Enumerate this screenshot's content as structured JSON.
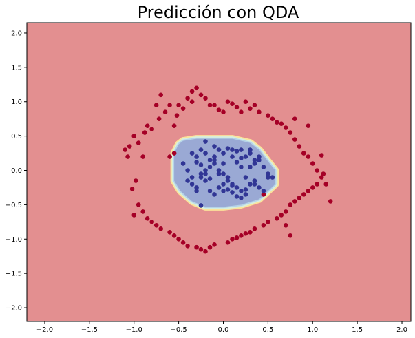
{
  "chart_data": {
    "type": "scatter",
    "title": "Predicción con QDA",
    "xlabel": "",
    "ylabel": "",
    "xlim": [
      -2.2,
      2.1
    ],
    "ylim": [
      -2.2,
      2.15
    ],
    "x_ticks": [
      -2.0,
      -1.5,
      -1.0,
      -0.5,
      0.0,
      0.5,
      1.0,
      1.5,
      2.0
    ],
    "x_tick_labels": [
      "−2.0",
      "−1.5",
      "−1.0",
      "−0.5",
      "0.0",
      "0.5",
      "1.0",
      "1.5",
      "2.0"
    ],
    "y_ticks": [
      2.0,
      1.5,
      1.0,
      0.5,
      0.0,
      -0.5,
      -1.0,
      -1.5,
      -2.0
    ],
    "y_tick_labels": [
      "2.0",
      "1.5",
      "1.0",
      "0.5",
      "0.0",
      "−0.5",
      "−1.0",
      "−1.5",
      "−2.0"
    ],
    "grid": false,
    "colors": {
      "outer_region": "#e38f90",
      "inner_region": "#9aa9d4",
      "boundary_outer": "#fbe39a",
      "boundary_mid": "#d6efe0",
      "boundary_inner": "#b5d3e8",
      "class_outer": "#a50026",
      "class_inner": "#313695"
    },
    "decision_region": {
      "inner_polygon": [
        [
          -0.55,
          0.25
        ],
        [
          -0.5,
          0.38
        ],
        [
          -0.45,
          0.43
        ],
        [
          -0.3,
          0.46
        ],
        [
          0.1,
          0.46
        ],
        [
          0.3,
          0.4
        ],
        [
          0.4,
          0.3
        ],
        [
          0.5,
          0.13
        ],
        [
          0.58,
          0.0
        ],
        [
          0.58,
          -0.2
        ],
        [
          0.5,
          -0.3
        ],
        [
          0.4,
          -0.42
        ],
        [
          0.2,
          -0.5
        ],
        [
          0.0,
          -0.53
        ],
        [
          -0.2,
          -0.53
        ],
        [
          -0.35,
          -0.45
        ],
        [
          -0.48,
          -0.3
        ],
        [
          -0.55,
          -0.15
        ]
      ]
    },
    "series": [
      {
        "class": "outer",
        "x": [
          -1.0,
          -0.95,
          -1.05,
          -1.1,
          -0.9,
          -0.88,
          -0.85,
          -0.8,
          -0.75,
          -0.72,
          -0.7,
          -0.65,
          -0.6,
          -0.55,
          -0.52,
          -0.5,
          -0.45,
          -0.4,
          -0.35,
          -0.3,
          -0.25,
          -0.2,
          -0.15,
          -0.1,
          -0.05,
          0.0,
          0.05,
          0.1,
          0.15,
          0.2,
          0.25,
          0.3,
          0.35,
          0.4,
          0.5,
          0.55,
          0.6,
          0.65,
          0.7,
          0.75,
          0.8,
          0.85,
          0.9,
          0.95,
          1.0,
          1.05,
          1.1,
          1.15,
          1.2,
          -1.02,
          -1.0,
          -0.95,
          -0.9,
          -0.85,
          -0.8,
          -0.75,
          -0.7,
          -0.6,
          -0.55,
          -0.5,
          -0.45,
          -0.4,
          -0.3,
          -0.25,
          -0.2,
          -0.15,
          -0.1,
          0.05,
          0.1,
          0.15,
          0.2,
          0.25,
          0.3,
          0.35,
          0.45,
          0.5,
          0.6,
          0.65,
          0.7,
          0.75,
          0.8,
          0.85,
          0.9,
          0.95,
          1.0,
          1.05,
          1.12,
          -0.6,
          -0.55,
          -0.35,
          0.45,
          0.7,
          0.8,
          0.95,
          -1.07,
          -0.98,
          0.75,
          1.1
        ],
        "y": [
          0.5,
          0.4,
          0.35,
          0.3,
          0.2,
          0.55,
          0.65,
          0.6,
          0.95,
          0.75,
          1.1,
          0.85,
          0.95,
          0.65,
          0.8,
          0.95,
          0.9,
          1.05,
          1.0,
          1.2,
          1.1,
          1.05,
          0.95,
          0.95,
          0.88,
          0.85,
          1.0,
          0.97,
          0.92,
          0.85,
          1.0,
          0.9,
          0.95,
          0.85,
          0.8,
          0.75,
          0.7,
          0.68,
          0.62,
          0.55,
          0.45,
          0.35,
          0.25,
          0.2,
          0.1,
          0.0,
          -0.1,
          -0.2,
          -0.45,
          -0.27,
          -0.65,
          -0.5,
          -0.6,
          -0.7,
          -0.75,
          -0.8,
          -0.85,
          -0.9,
          -0.95,
          -1.0,
          -1.05,
          -1.1,
          -1.12,
          -1.15,
          -1.18,
          -1.12,
          -1.08,
          -1.05,
          -1.0,
          -0.98,
          -0.95,
          -0.92,
          -0.9,
          -0.85,
          -0.8,
          -0.75,
          -0.7,
          -0.65,
          -0.6,
          -0.5,
          -0.45,
          -0.4,
          -0.35,
          -0.3,
          -0.25,
          -0.2,
          -0.05,
          0.2,
          0.25,
          1.15,
          -0.35,
          -0.8,
          0.75,
          0.65,
          0.2,
          -0.15,
          -0.95,
          0.22
        ],
        "color": "#a50026"
      },
      {
        "class": "inner",
        "x": [
          -0.45,
          -0.4,
          -0.35,
          -0.3,
          -0.25,
          -0.2,
          -0.15,
          -0.1,
          -0.05,
          0.0,
          0.05,
          0.1,
          0.15,
          0.2,
          0.25,
          0.3,
          0.35,
          0.4,
          0.45,
          0.5,
          0.55,
          -0.4,
          -0.35,
          -0.3,
          -0.25,
          -0.2,
          -0.15,
          -0.1,
          -0.05,
          0.0,
          0.05,
          0.1,
          0.15,
          0.2,
          0.25,
          0.3,
          0.35,
          0.4,
          0.45,
          0.5,
          -0.35,
          -0.3,
          -0.25,
          -0.2,
          -0.15,
          -0.1,
          -0.05,
          0.0,
          0.05,
          0.1,
          0.15,
          0.2,
          0.25,
          0.3,
          0.35,
          0.4,
          -0.3,
          -0.2,
          -0.1,
          0.0,
          0.1,
          0.2,
          0.3,
          -0.25,
          -0.15,
          -0.05,
          0.05,
          0.15,
          0.25,
          0.35,
          -0.2,
          -0.1,
          0.0,
          0.1,
          0.2,
          -0.25
        ],
        "y": [
          0.1,
          0.0,
          -0.1,
          0.2,
          0.3,
          0.25,
          0.15,
          0.35,
          0.3,
          0.25,
          0.32,
          0.3,
          0.28,
          0.3,
          0.2,
          0.25,
          0.1,
          0.15,
          0.05,
          -0.05,
          -0.1,
          -0.15,
          -0.2,
          -0.25,
          -0.1,
          -0.05,
          0.05,
          0.1,
          0.0,
          -0.05,
          -0.1,
          -0.2,
          -0.25,
          -0.3,
          -0.35,
          -0.2,
          -0.15,
          -0.25,
          -0.3,
          -0.1,
          0.25,
          0.12,
          -0.05,
          -0.15,
          -0.3,
          -0.35,
          -0.25,
          -0.2,
          -0.28,
          -0.32,
          -0.38,
          -0.4,
          -0.1,
          0.05,
          0.15,
          0.2,
          -0.3,
          0.0,
          0.15,
          0.1,
          0.2,
          0.05,
          0.3,
          0.08,
          -0.12,
          -0.05,
          -0.15,
          0.12,
          -0.28,
          -0.2,
          0.42,
          0.2,
          -0.3,
          -0.22,
          0.18,
          -0.51
        ],
        "color": "#313695"
      }
    ]
  }
}
